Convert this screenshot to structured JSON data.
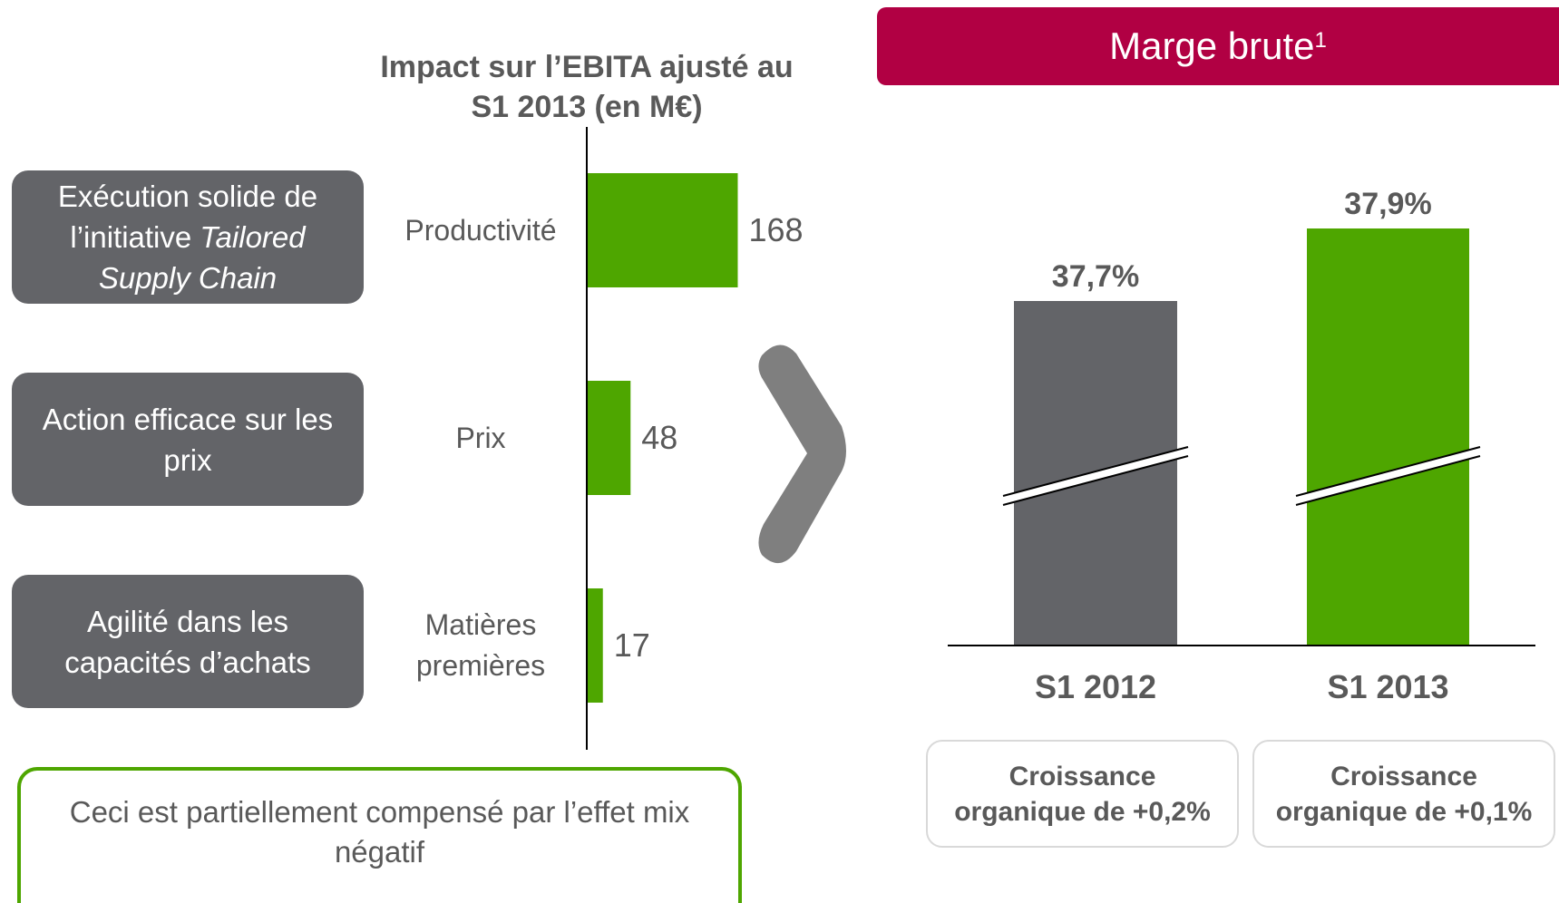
{
  "chart_data": [
    {
      "type": "hbar",
      "title": "Impact sur l’EBITA ajusté au S1 2013 (en M€)",
      "categories": [
        "Productivité",
        "Prix",
        "Matières premières"
      ],
      "values": [
        168,
        48,
        17
      ],
      "color": "#4ea600",
      "drivers": [
        {
          "text": "Exécution solide de l’initiative",
          "italic": "Tailored Supply Chain"
        },
        {
          "text": "Action efficace sur les prix"
        },
        {
          "text": "Agilité dans les capacités d’achats"
        }
      ],
      "note": "Ceci est partiellement compensé par l’effet mix négatif"
    },
    {
      "type": "bar",
      "title": "Marge brute",
      "title_note": "1",
      "categories": [
        "S1 2012",
        "S1 2013"
      ],
      "values": [
        37.7,
        37.9
      ],
      "value_labels": [
        "37,7%",
        "37,9%"
      ],
      "colors": [
        "#636468",
        "#4ea600"
      ],
      "ylim": [
        36.75,
        38
      ],
      "axis_break": true,
      "notes": [
        "Croissance organique de  +0,2%",
        "Croissance organique de  +0,1%"
      ]
    }
  ]
}
